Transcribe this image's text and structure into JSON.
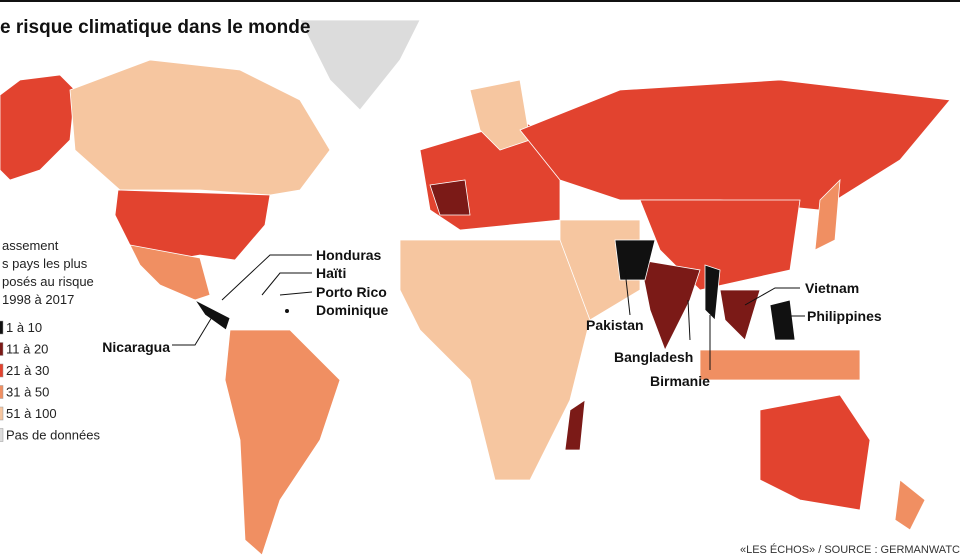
{
  "title": "e risque climatique dans le monde",
  "legend": {
    "title_lines": [
      "assement",
      "s pays les plus",
      "posés au risque",
      "1998 à 2017"
    ],
    "items": [
      {
        "label": "1 à 10",
        "color": "#111111"
      },
      {
        "label": "11 à 20",
        "color": "#7b1a17"
      },
      {
        "label": "21 à 30",
        "color": "#e2432f"
      },
      {
        "label": "31 à 50",
        "color": "#f08f62"
      },
      {
        "label": "51 à 100",
        "color": "#f6c6a0"
      },
      {
        "label": "Pas de données",
        "color": "#dcdcdc"
      }
    ]
  },
  "countries": [
    "Honduras",
    "Haïti",
    "Porto Rico",
    "Dominique",
    "Nicaragua",
    "Pakistan",
    "Bangladesh",
    "Birmanie",
    "Vietnam",
    "Philippines"
  ],
  "source": "«LES ÉCHOS» / SOURCE : GERMANWATC"
}
